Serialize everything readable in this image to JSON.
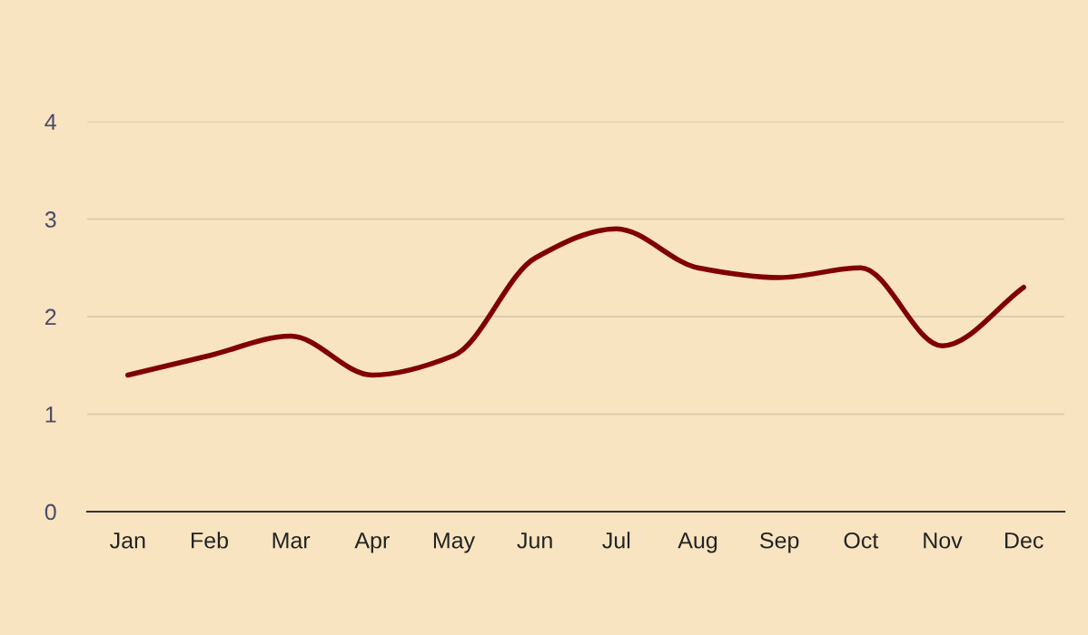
{
  "chart_data": {
    "type": "line",
    "categories": [
      "Jan",
      "Feb",
      "Mar",
      "Apr",
      "May",
      "Jun",
      "Jul",
      "Aug",
      "Sep",
      "Oct",
      "Nov",
      "Dec"
    ],
    "series": [
      {
        "color": "#800000",
        "values": [
          1.4,
          1.6,
          1.8,
          1.4,
          1.6,
          2.6,
          2.9,
          2.5,
          2.4,
          2.5,
          1.7,
          2.3
        ]
      }
    ],
    "ylim": [
      0,
      4
    ],
    "yticks": [
      0,
      1,
      2,
      3,
      4
    ],
    "grid": "y"
  }
}
